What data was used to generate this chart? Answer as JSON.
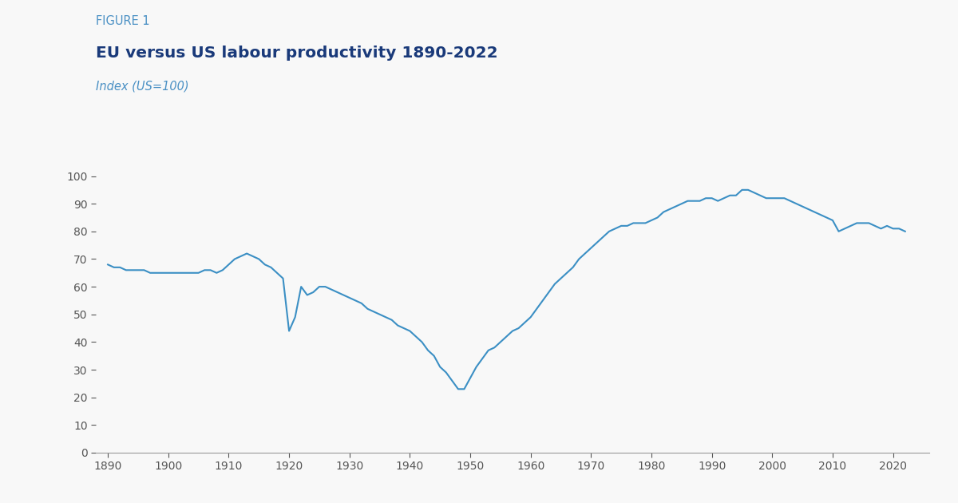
{
  "figure_label": "FIGURE 1",
  "title": "EU versus US labour productivity 1890-2022",
  "subtitle": "Index (US=100)",
  "line_color": "#3b8fc4",
  "background_color": "#f8f8f8",
  "xlim": [
    1888,
    2026
  ],
  "ylim": [
    0,
    100
  ],
  "xticks": [
    1890,
    1900,
    1910,
    1920,
    1930,
    1940,
    1950,
    1960,
    1970,
    1980,
    1990,
    2000,
    2010,
    2020
  ],
  "yticks": [
    0,
    10,
    20,
    30,
    40,
    50,
    60,
    70,
    80,
    90,
    100
  ],
  "years": [
    1890,
    1891,
    1892,
    1893,
    1894,
    1895,
    1896,
    1897,
    1898,
    1899,
    1900,
    1901,
    1902,
    1903,
    1904,
    1905,
    1906,
    1907,
    1908,
    1909,
    1910,
    1911,
    1912,
    1913,
    1914,
    1915,
    1916,
    1917,
    1918,
    1919,
    1920,
    1921,
    1922,
    1923,
    1924,
    1925,
    1926,
    1927,
    1928,
    1929,
    1930,
    1931,
    1932,
    1933,
    1934,
    1935,
    1936,
    1937,
    1938,
    1939,
    1940,
    1941,
    1942,
    1943,
    1944,
    1945,
    1946,
    1947,
    1948,
    1949,
    1950,
    1951,
    1952,
    1953,
    1954,
    1955,
    1956,
    1957,
    1958,
    1959,
    1960,
    1961,
    1962,
    1963,
    1964,
    1965,
    1966,
    1967,
    1968,
    1969,
    1970,
    1971,
    1972,
    1973,
    1974,
    1975,
    1976,
    1977,
    1978,
    1979,
    1980,
    1981,
    1982,
    1983,
    1984,
    1985,
    1986,
    1987,
    1988,
    1989,
    1990,
    1991,
    1992,
    1993,
    1994,
    1995,
    1996,
    1997,
    1998,
    1999,
    2000,
    2001,
    2002,
    2003,
    2004,
    2005,
    2006,
    2007,
    2008,
    2009,
    2010,
    2011,
    2012,
    2013,
    2014,
    2015,
    2016,
    2017,
    2018,
    2019,
    2020,
    2021,
    2022
  ],
  "values": [
    68,
    67,
    67,
    66,
    66,
    66,
    66,
    65,
    65,
    65,
    65,
    65,
    65,
    65,
    65,
    65,
    66,
    66,
    65,
    66,
    68,
    70,
    71,
    72,
    71,
    70,
    68,
    67,
    65,
    63,
    44,
    49,
    60,
    57,
    58,
    60,
    60,
    59,
    58,
    57,
    56,
    55,
    54,
    52,
    51,
    50,
    49,
    48,
    46,
    45,
    44,
    42,
    40,
    37,
    35,
    31,
    29,
    26,
    23,
    23,
    27,
    31,
    34,
    37,
    38,
    40,
    42,
    44,
    45,
    47,
    49,
    52,
    55,
    58,
    61,
    63,
    65,
    67,
    70,
    72,
    74,
    76,
    78,
    80,
    81,
    82,
    82,
    83,
    83,
    83,
    84,
    85,
    87,
    88,
    89,
    90,
    91,
    91,
    91,
    92,
    92,
    91,
    92,
    93,
    93,
    95,
    95,
    94,
    93,
    92,
    92,
    92,
    92,
    91,
    90,
    89,
    88,
    87,
    86,
    85,
    84,
    80,
    81,
    82,
    83,
    83,
    83,
    82,
    81,
    82,
    81,
    81,
    80
  ],
  "figure_label_color": "#4a90c4",
  "title_color": "#1a3a7a",
  "subtitle_color": "#4a90c4",
  "axis_color": "#999999",
  "tick_color": "#555555",
  "tick_label_color": "#555555",
  "line_width": 1.5
}
